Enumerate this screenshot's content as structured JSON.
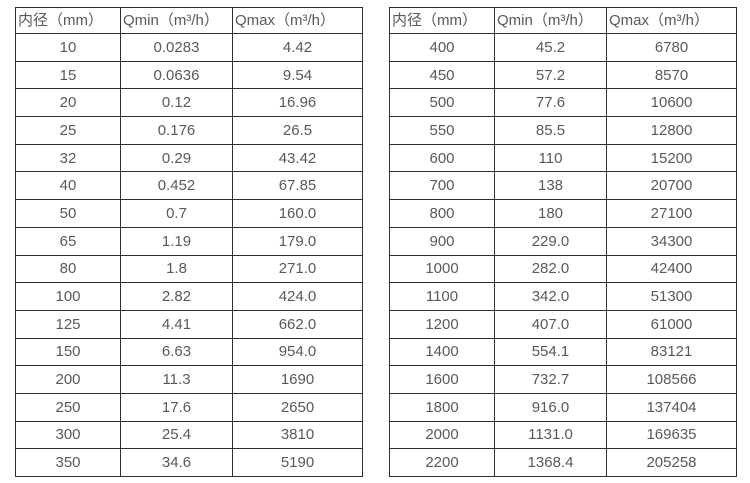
{
  "palette": {
    "background": "#ffffff",
    "border": "#2f2f2f",
    "text": "#595959"
  },
  "tables": [
    {
      "name": "flow-range-table-small-diameters",
      "headers": [
        "内径（mm）",
        "Qmin（m³/h）",
        "Qmax（m³/h）"
      ],
      "rows": [
        [
          "10",
          "0.0283",
          "4.42"
        ],
        [
          "15",
          "0.0636",
          "9.54"
        ],
        [
          "20",
          "0.12",
          "16.96"
        ],
        [
          "25",
          "0.176",
          "26.5"
        ],
        [
          "32",
          "0.29",
          "43.42"
        ],
        [
          "40",
          "0.452",
          "67.85"
        ],
        [
          "50",
          "0.7",
          "160.0"
        ],
        [
          "65",
          "1.19",
          "179.0"
        ],
        [
          "80",
          "1.8",
          "271.0"
        ],
        [
          "100",
          "2.82",
          "424.0"
        ],
        [
          "125",
          "4.41",
          "662.0"
        ],
        [
          "150",
          "6.63",
          "954.0"
        ],
        [
          "200",
          "11.3",
          "1690"
        ],
        [
          "250",
          "17.6",
          "2650"
        ],
        [
          "300",
          "25.4",
          "3810"
        ],
        [
          "350",
          "34.6",
          "5190"
        ]
      ]
    },
    {
      "name": "flow-range-table-large-diameters",
      "headers": [
        "内径（mm）",
        "Qmin（m³/h）",
        "Qmax（m³/h）"
      ],
      "rows": [
        [
          "400",
          "45.2",
          "6780"
        ],
        [
          "450",
          "57.2",
          "8570"
        ],
        [
          "500",
          "77.6",
          "10600"
        ],
        [
          "550",
          "85.5",
          "12800"
        ],
        [
          "600",
          "110",
          "15200"
        ],
        [
          "700",
          "138",
          "20700"
        ],
        [
          "800",
          "180",
          "27100"
        ],
        [
          "900",
          "229.0",
          "34300"
        ],
        [
          "1000",
          "282.0",
          "42400"
        ],
        [
          "1100",
          "342.0",
          "51300"
        ],
        [
          "1200",
          "407.0",
          "61000"
        ],
        [
          "1400",
          "554.1",
          "83121"
        ],
        [
          "1600",
          "732.7",
          "108566"
        ],
        [
          "1800",
          "916.0",
          "137404"
        ],
        [
          "2000",
          "1131.0",
          "169635"
        ],
        [
          "2200",
          "1368.4",
          "205258"
        ]
      ]
    }
  ],
  "chart_data": {
    "type": "table",
    "title": "",
    "columns": [
      "内径（mm）",
      "Qmin（m³/h）",
      "Qmax（m³/h）"
    ],
    "rows": [
      [
        10,
        0.0283,
        4.42
      ],
      [
        15,
        0.0636,
        9.54
      ],
      [
        20,
        0.12,
        16.96
      ],
      [
        25,
        0.176,
        26.5
      ],
      [
        32,
        0.29,
        43.42
      ],
      [
        40,
        0.452,
        67.85
      ],
      [
        50,
        0.7,
        160.0
      ],
      [
        65,
        1.19,
        179.0
      ],
      [
        80,
        1.8,
        271.0
      ],
      [
        100,
        2.82,
        424.0
      ],
      [
        125,
        4.41,
        662.0
      ],
      [
        150,
        6.63,
        954.0
      ],
      [
        200,
        11.3,
        1690
      ],
      [
        250,
        17.6,
        2650
      ],
      [
        300,
        25.4,
        3810
      ],
      [
        350,
        34.6,
        5190
      ],
      [
        400,
        45.2,
        6780
      ],
      [
        450,
        57.2,
        8570
      ],
      [
        500,
        77.6,
        10600
      ],
      [
        550,
        85.5,
        12800
      ],
      [
        600,
        110,
        15200
      ],
      [
        700,
        138,
        20700
      ],
      [
        800,
        180,
        27100
      ],
      [
        900,
        229.0,
        34300
      ],
      [
        1000,
        282.0,
        42400
      ],
      [
        1100,
        342.0,
        51300
      ],
      [
        1200,
        407.0,
        61000
      ],
      [
        1400,
        554.1,
        83121
      ],
      [
        1600,
        732.7,
        108566
      ],
      [
        1800,
        916.0,
        137404
      ],
      [
        2000,
        1131.0,
        169635
      ],
      [
        2200,
        1368.4,
        205258
      ]
    ]
  }
}
